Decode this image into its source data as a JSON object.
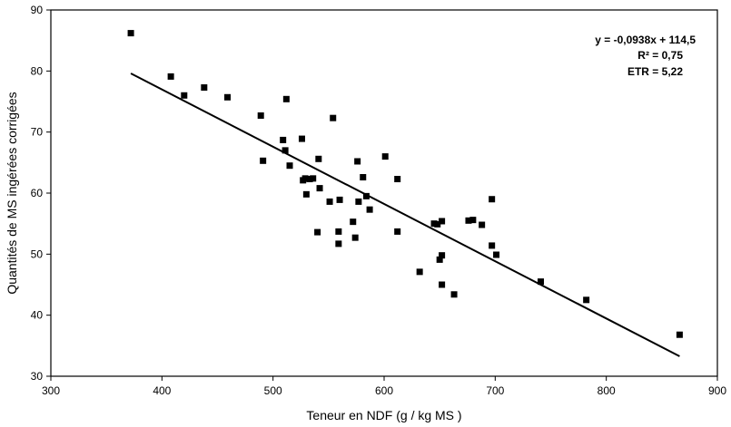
{
  "chart_data": {
    "type": "scatter",
    "title": "",
    "xlabel": "Teneur en NDF (g / kg MS )",
    "ylabel": "Quantités de MS ingérées corrigées",
    "xlim": [
      300,
      900
    ],
    "ylim": [
      30,
      90
    ],
    "x_ticks": [
      "300",
      "400",
      "500",
      "600",
      "700",
      "800",
      "900"
    ],
    "y_ticks": [
      "30",
      "40",
      "50",
      "60",
      "70",
      "80",
      "90"
    ],
    "grid": false,
    "legend": "none",
    "marker_color": "#000000",
    "series": [
      {
        "points": [
          [
            372,
            86.2
          ],
          [
            408,
            79.1
          ],
          [
            420,
            76.0
          ],
          [
            438,
            77.3
          ],
          [
            459,
            75.7
          ],
          [
            489,
            72.7
          ],
          [
            491,
            65.3
          ],
          [
            509,
            68.7
          ],
          [
            511,
            67.0
          ],
          [
            512,
            75.4
          ],
          [
            515,
            64.5
          ],
          [
            526,
            68.9
          ],
          [
            527,
            62.1
          ],
          [
            529,
            62.4
          ],
          [
            530,
            59.8
          ],
          [
            533,
            62.3
          ],
          [
            536,
            62.4
          ],
          [
            540,
            53.6
          ],
          [
            541,
            65.6
          ],
          [
            542,
            60.8
          ],
          [
            551,
            58.6
          ],
          [
            554,
            72.3
          ],
          [
            559,
            53.7
          ],
          [
            559,
            51.7
          ],
          [
            560,
            58.9
          ],
          [
            572,
            55.3
          ],
          [
            574,
            52.7
          ],
          [
            576,
            65.2
          ],
          [
            577,
            58.6
          ],
          [
            581,
            62.6
          ],
          [
            584,
            59.5
          ],
          [
            587,
            57.3
          ],
          [
            601,
            66.0
          ],
          [
            612,
            62.3
          ],
          [
            612,
            53.7
          ],
          [
            632,
            47.1
          ],
          [
            645,
            55.0
          ],
          [
            648,
            54.9
          ],
          [
            650,
            49.1
          ],
          [
            652,
            55.4
          ],
          [
            652,
            45.0
          ],
          [
            652,
            49.8
          ],
          [
            663,
            43.4
          ],
          [
            676,
            55.5
          ],
          [
            680,
            55.6
          ],
          [
            688,
            54.8
          ],
          [
            697,
            59.0
          ],
          [
            697,
            51.4
          ],
          [
            701,
            49.9
          ],
          [
            741,
            45.5
          ],
          [
            782,
            42.5
          ],
          [
            866,
            36.8
          ]
        ]
      }
    ],
    "regression": {
      "slope": -0.0938,
      "intercept": 114.5,
      "x_range": [
        372,
        866
      ]
    },
    "annotations": [
      "y = -0,0938x + 114,5",
      "R²  = 0,75",
      "ETR = 5,22"
    ]
  }
}
